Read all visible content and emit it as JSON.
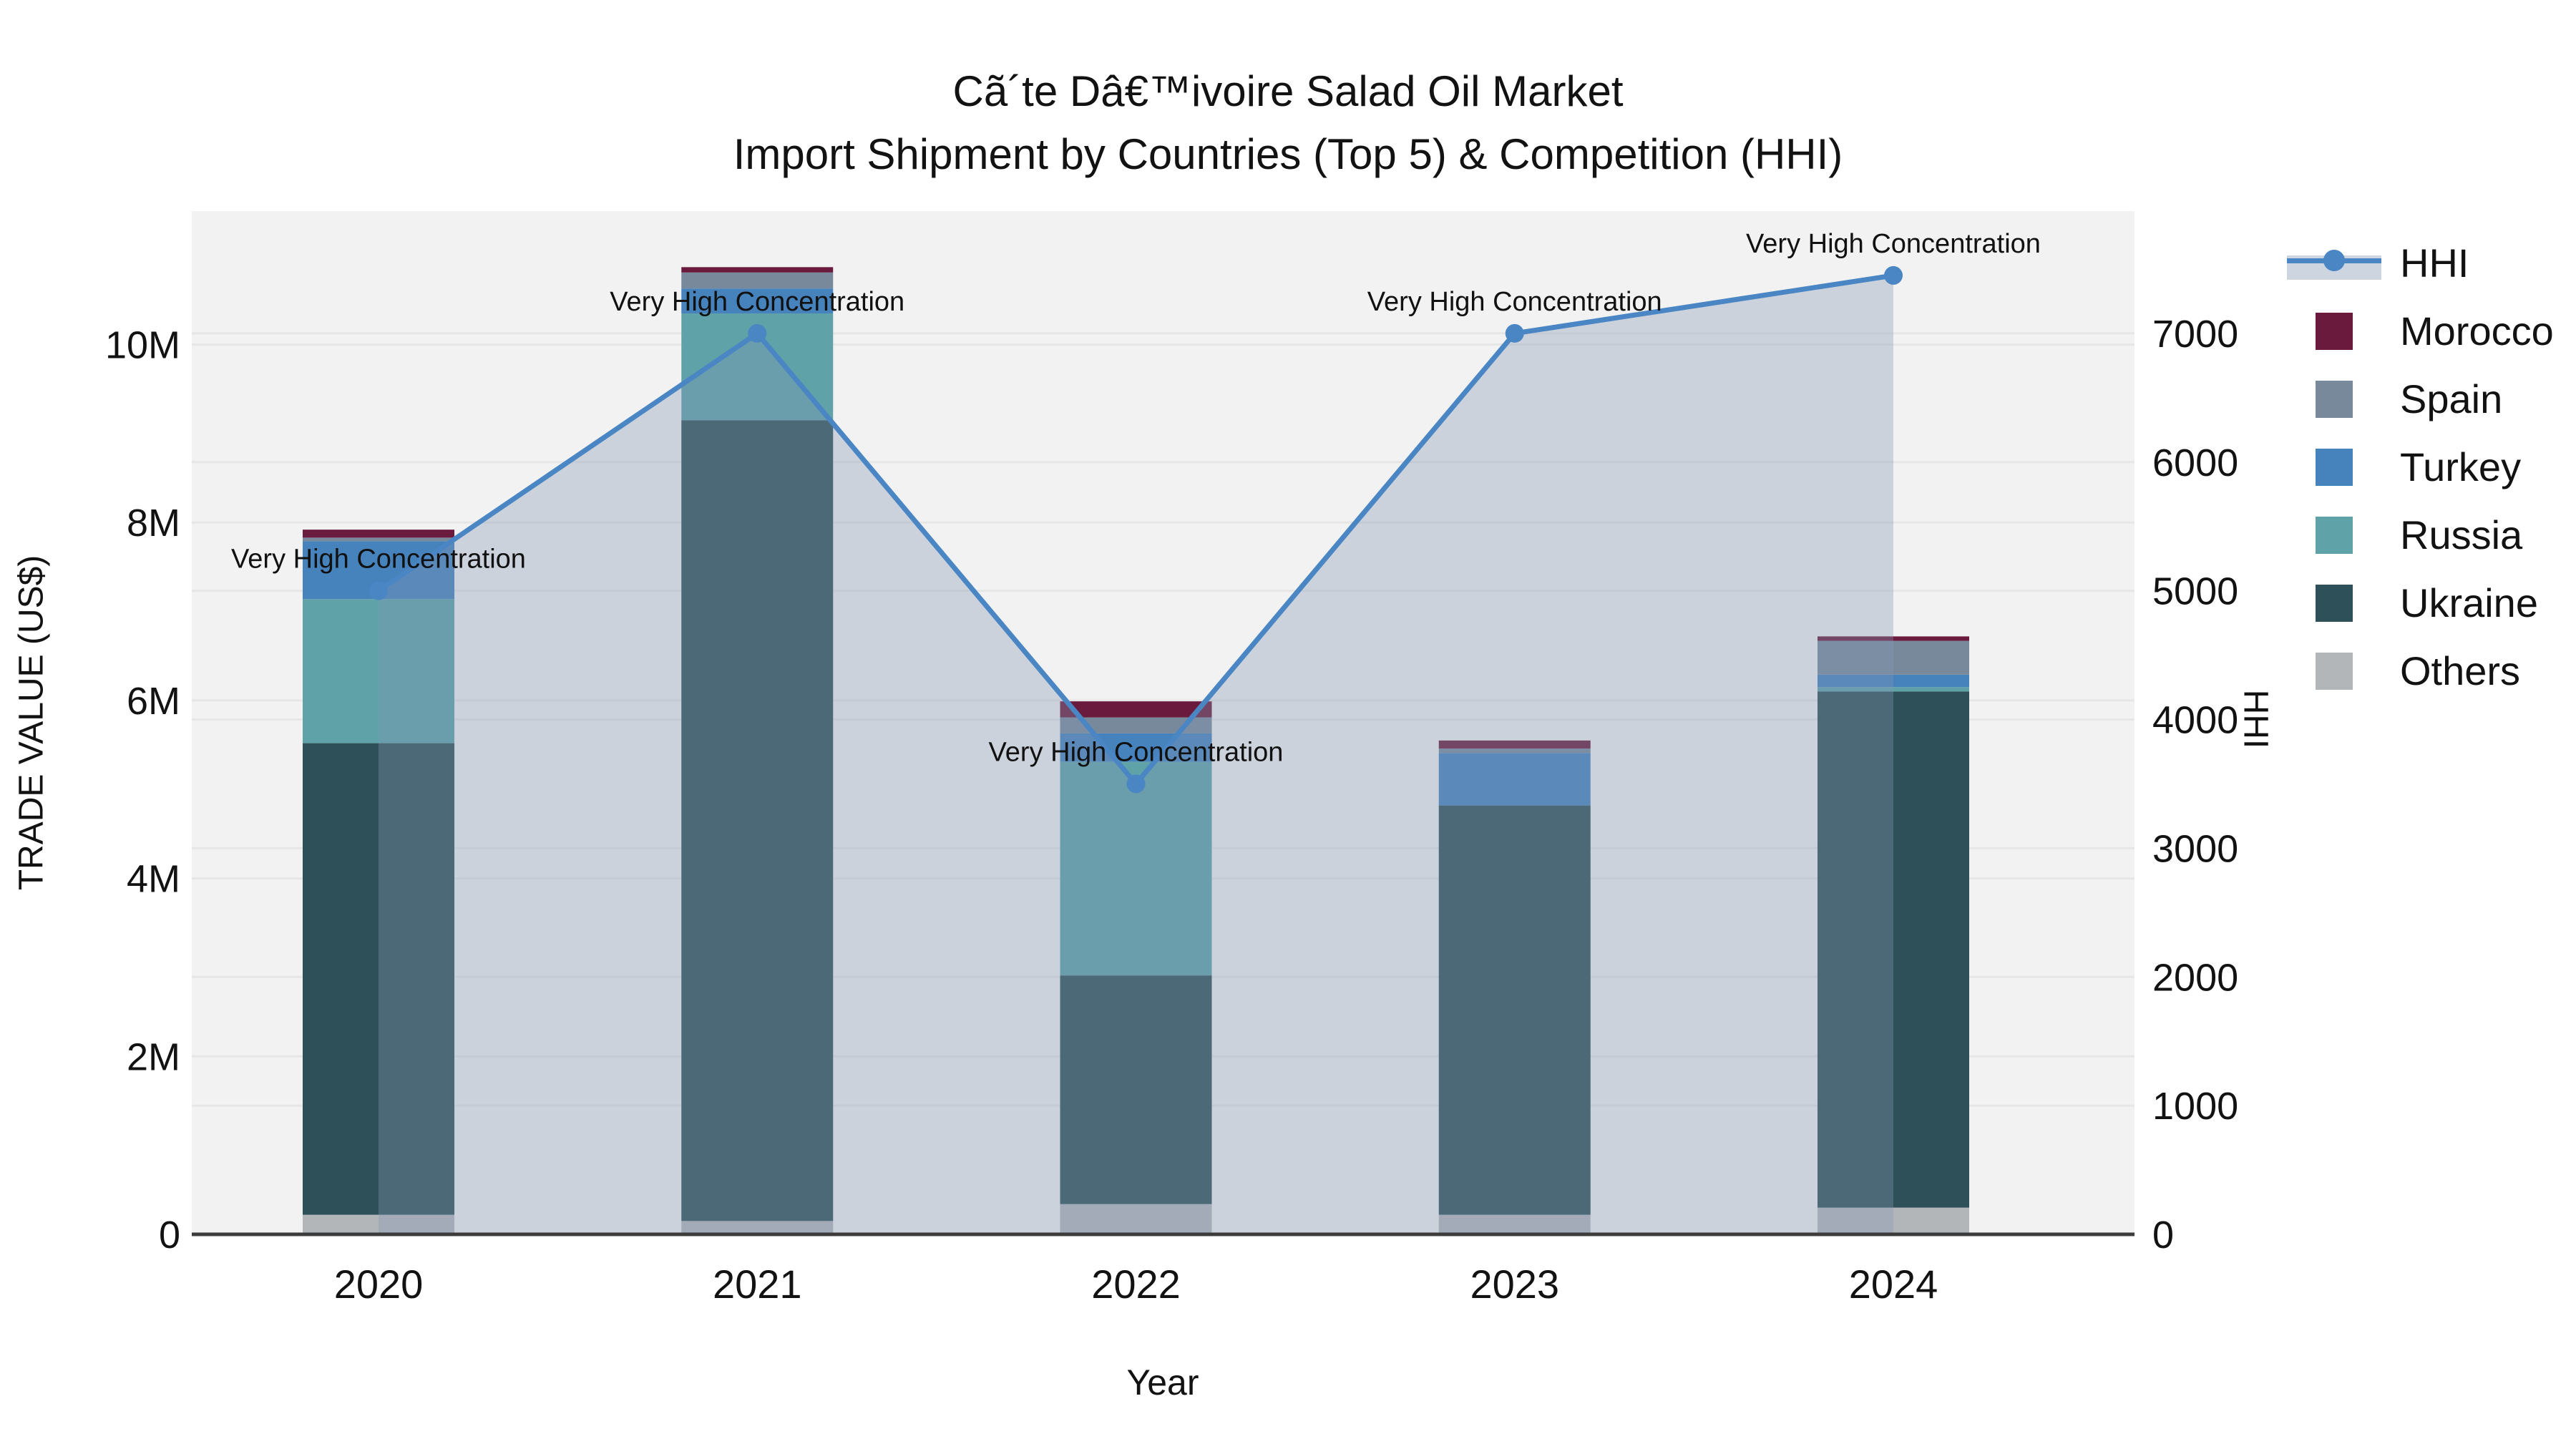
{
  "title": {
    "line1": "Cã´te Dâ€™ivoire Salad Oil Market",
    "line2": "Import Shipment by Countries (Top 5) & Competition (HHI)"
  },
  "axis_titles": {
    "y": "TRADE VALUE (US$)",
    "x": "Year",
    "y2": "HHI"
  },
  "legend": {
    "items": [
      {
        "label": "HHI",
        "type": "line",
        "color": "#4A86C4",
        "band_color": "#CDD5E0"
      },
      {
        "label": "Morocco",
        "type": "swatch",
        "color": "#6A1B3D"
      },
      {
        "label": "Spain",
        "type": "swatch",
        "color": "#78899B"
      },
      {
        "label": "Turkey",
        "type": "swatch",
        "color": "#4682BC"
      },
      {
        "label": "Russia",
        "type": "swatch",
        "color": "#5FA2A8"
      },
      {
        "label": "Ukraine",
        "type": "swatch",
        "color": "#2E5058"
      },
      {
        "label": "Others",
        "type": "swatch",
        "color": "#B2B6B9"
      }
    ]
  },
  "chart_data": {
    "type": "bar",
    "stacked": true,
    "title": "Cã´te Dâ€™ivoire Salad Oil Market Import Shipment by Countries (Top 5) & Competition (HHI)",
    "xlabel": "Year",
    "ylabel": "TRADE VALUE (US$)",
    "y2label": "HHI",
    "categories": [
      "2020",
      "2021",
      "2022",
      "2023",
      "2024"
    ],
    "unit": "US$",
    "plot_bg": "#F2F2F2",
    "grid_color": "#E6E6E6",
    "axis_line_color": "#3C3C3C",
    "series": [
      {
        "name": "Others",
        "color": "#B2B6B9",
        "values": [
          220000,
          150000,
          340000,
          220000,
          300000
        ]
      },
      {
        "name": "Ukraine",
        "color": "#2E5058",
        "values": [
          5300000,
          9000000,
          2570000,
          4600000,
          5800000
        ]
      },
      {
        "name": "Russia",
        "color": "#5FA2A8",
        "values": [
          1620000,
          1200000,
          2400000,
          0,
          50000
        ]
      },
      {
        "name": "Turkey",
        "color": "#4682BC",
        "values": [
          650000,
          280000,
          320000,
          590000,
          140000
        ]
      },
      {
        "name": "Spain",
        "color": "#78899B",
        "values": [
          40000,
          180000,
          180000,
          50000,
          380000
        ]
      },
      {
        "name": "Morocco",
        "color": "#6A1B3D",
        "values": [
          90000,
          60000,
          180000,
          90000,
          50000
        ]
      }
    ],
    "line": {
      "name": "HHI",
      "axis": "y2",
      "color": "#4A86C4",
      "fill_color": "rgba(131,151,180,0.35)",
      "values": [
        5000,
        7000,
        3500,
        7000,
        7450
      ],
      "point_annotations": [
        "Very High Concentration",
        "Very High Concentration",
        "Very High Concentration",
        "Very High Concentration",
        "Very High Concentration"
      ]
    },
    "yaxis": {
      "range": [
        0,
        11500000
      ],
      "ticks": [
        {
          "v": 0,
          "label": "0"
        },
        {
          "v": 2000000,
          "label": "2M"
        },
        {
          "v": 4000000,
          "label": "4M"
        },
        {
          "v": 6000000,
          "label": "6M"
        },
        {
          "v": 8000000,
          "label": "8M"
        },
        {
          "v": 10000000,
          "label": "10M"
        }
      ]
    },
    "y2axis": {
      "range": [
        0,
        7950
      ],
      "ticks": [
        {
          "v": 0,
          "label": "0"
        },
        {
          "v": 1000,
          "label": "1000"
        },
        {
          "v": 2000,
          "label": "2000"
        },
        {
          "v": 3000,
          "label": "3000"
        },
        {
          "v": 4000,
          "label": "4000"
        },
        {
          "v": 5000,
          "label": "5000"
        },
        {
          "v": 6000,
          "label": "6000"
        },
        {
          "v": 7000,
          "label": "7000"
        }
      ]
    }
  }
}
